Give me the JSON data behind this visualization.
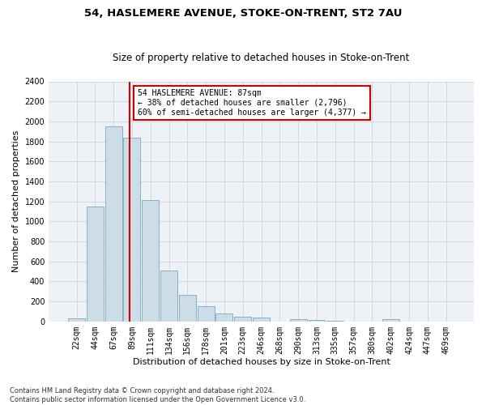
{
  "title": "54, HASLEMERE AVENUE, STOKE-ON-TRENT, ST2 7AU",
  "subtitle": "Size of property relative to detached houses in Stoke-on-Trent",
  "xlabel": "Distribution of detached houses by size in Stoke-on-Trent",
  "ylabel": "Number of detached properties",
  "categories": [
    "22sqm",
    "44sqm",
    "67sqm",
    "89sqm",
    "111sqm",
    "134sqm",
    "156sqm",
    "178sqm",
    "201sqm",
    "223sqm",
    "246sqm",
    "268sqm",
    "290sqm",
    "313sqm",
    "335sqm",
    "357sqm",
    "380sqm",
    "402sqm",
    "424sqm",
    "447sqm",
    "469sqm"
  ],
  "values": [
    30,
    1150,
    1950,
    1840,
    1210,
    510,
    265,
    155,
    80,
    50,
    40,
    0,
    25,
    18,
    10,
    0,
    0,
    20,
    0,
    0,
    0
  ],
  "bar_color": "#ccdde8",
  "bar_edge_color": "#7aaabf",
  "vline_color": "#cc0000",
  "vline_x": 2.85,
  "annotation_line1": "54 HASLEMERE AVENUE: 87sqm",
  "annotation_line2": "← 38% of detached houses are smaller (2,796)",
  "annotation_line3": "60% of semi-detached houses are larger (4,377) →",
  "annotation_box_color": "#cc0000",
  "ylim": [
    0,
    2400
  ],
  "yticks": [
    0,
    200,
    400,
    600,
    800,
    1000,
    1200,
    1400,
    1600,
    1800,
    2000,
    2200,
    2400
  ],
  "footer_text": "Contains HM Land Registry data © Crown copyright and database right 2024.\nContains public sector information licensed under the Open Government Licence v3.0.",
  "bg_color": "#eef2f6",
  "grid_color": "#d0d8e2",
  "title_fontsize": 9.5,
  "subtitle_fontsize": 8.5,
  "ylabel_fontsize": 8,
  "xlabel_fontsize": 8,
  "tick_fontsize": 7,
  "annotation_fontsize": 7,
  "footer_fontsize": 6
}
